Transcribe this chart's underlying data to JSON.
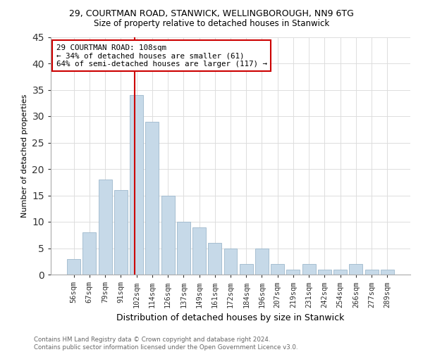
{
  "title_line1": "29, COURTMAN ROAD, STANWICK, WELLINGBOROUGH, NN9 6TG",
  "title_line2": "Size of property relative to detached houses in Stanwick",
  "xlabel": "Distribution of detached houses by size in Stanwick",
  "ylabel": "Number of detached properties",
  "bar_labels": [
    "56sqm",
    "67sqm",
    "79sqm",
    "91sqm",
    "102sqm",
    "114sqm",
    "126sqm",
    "137sqm",
    "149sqm",
    "161sqm",
    "172sqm",
    "184sqm",
    "196sqm",
    "207sqm",
    "219sqm",
    "231sqm",
    "242sqm",
    "254sqm",
    "266sqm",
    "277sqm",
    "289sqm"
  ],
  "bar_values": [
    3,
    8,
    18,
    16,
    34,
    29,
    15,
    10,
    9,
    6,
    5,
    2,
    5,
    2,
    1,
    2,
    1,
    1,
    2,
    1,
    1
  ],
  "bar_color": "#c6d9e8",
  "bar_edge_color": "#9db8cc",
  "vline_index": 4,
  "vline_color": "#cc0000",
  "annotation_text": "29 COURTMAN ROAD: 108sqm\n← 34% of detached houses are smaller (61)\n64% of semi-detached houses are larger (117) →",
  "annotation_box_edgecolor": "#cc0000",
  "annotation_text_color": "#000000",
  "ylim": [
    0,
    45
  ],
  "yticks": [
    0,
    5,
    10,
    15,
    20,
    25,
    30,
    35,
    40,
    45
  ],
  "footer_line1": "Contains HM Land Registry data © Crown copyright and database right 2024.",
  "footer_line2": "Contains public sector information licensed under the Open Government Licence v3.0.",
  "background_color": "#ffffff",
  "grid_color": "#dddddd",
  "title1_fontsize": 9,
  "title2_fontsize": 8.5,
  "ylabel_fontsize": 8,
  "xlabel_fontsize": 9
}
